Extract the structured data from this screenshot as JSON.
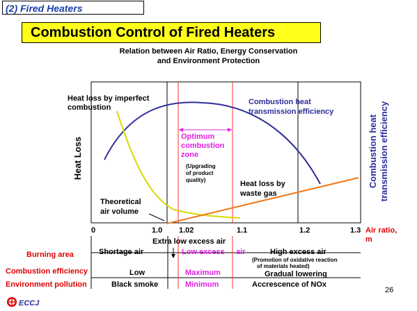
{
  "section_tag": "(2) Fired Heaters",
  "title": "Combustion Control of Fired Heaters",
  "subtitle_line1": "Relation between Air Ratio, Energy Conservation",
  "subtitle_line2": "and Environment Protection",
  "left_axis_label": "Heat Loss",
  "right_axis_label_line1": "Combustion heat",
  "right_axis_label_line2": "transmission efficiency",
  "curve_labels": {
    "imperfect_line1": "Heat loss by imperfect",
    "imperfect_line2": "combustion",
    "efficiency_line1": "Combustion heat",
    "efficiency_line2": "transmission efficiency",
    "waste_line1": "Heat loss by",
    "waste_line2": "waste gas",
    "theoretical_line1": "Theoretical",
    "theoretical_line2": "air volume"
  },
  "optimum_zone": {
    "line1": "Optimum",
    "line2": "combustion",
    "line3": "zone",
    "note_line1": "(Upgrading",
    "note_line2": "of product",
    "note_line3": "quality)"
  },
  "x_axis": {
    "ticks": [
      "0",
      "1.0",
      "1.02",
      "1.1",
      "1.2",
      "1.3"
    ],
    "label_line1": "Air ratio,",
    "label_line2": "m",
    "extra_low": "Extra low excess air"
  },
  "row_labels": {
    "burning_area": "Burning area",
    "combustion_efficiency": "Combustion efficiency",
    "environment_pollution": "Environment pollution"
  },
  "burning_area": {
    "shortage": "Shortage air",
    "low_excess": "Low excess",
    "air": "air",
    "high_excess": "High excess  air",
    "high_note_line1": "(Promotion of oxidative reaction",
    "high_note_line2": "of materials heated)"
  },
  "efficiency_row": {
    "low": "Low",
    "maximum": "Maximum",
    "gradual": "Gradual lowering"
  },
  "pollution_row": {
    "black_smoke": "Black smoke",
    "minimum": "Minimum",
    "nox": "Accrescence  of NOx"
  },
  "page_number": "26",
  "logo_text": "ECCJ",
  "colors": {
    "efficiency_curve": "#2d2d9a",
    "imperfect_curve": "#d8d800",
    "waste_curve": "#f07818",
    "optimum_zone": "#e020e0",
    "red_text": "#e00000",
    "title_bg": "#ffff1a"
  }
}
